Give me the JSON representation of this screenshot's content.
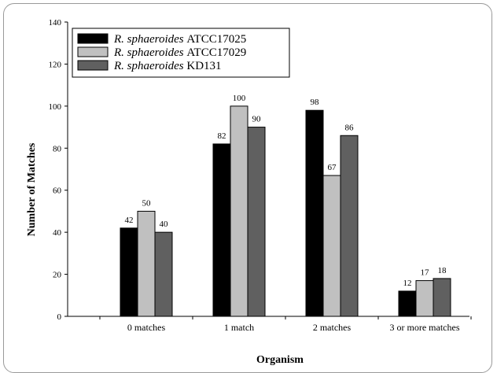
{
  "chart_data": {
    "type": "bar",
    "title": "",
    "xlabel": "Organism",
    "ylabel": "Number of Matches",
    "ylim": [
      0,
      140
    ],
    "yticks": [
      0,
      20,
      40,
      60,
      80,
      100,
      120,
      140
    ],
    "categories": [
      "0 matches",
      "1 match",
      "2 matches",
      "3 or more matches"
    ],
    "series": [
      {
        "name": "ATCC17025",
        "species": "R. sphaeroides",
        "color": "#000000",
        "values": [
          42,
          82,
          98,
          12
        ]
      },
      {
        "name": "ATCC17029",
        "species": "R. sphaeroides",
        "color": "#c0c0c0",
        "values": [
          50,
          100,
          67,
          17
        ]
      },
      {
        "name": "KD131",
        "species": "R. sphaeroides",
        "color": "#606060",
        "values": [
          40,
          90,
          86,
          18
        ]
      }
    ],
    "legend_position": "top-left",
    "grid": false
  }
}
